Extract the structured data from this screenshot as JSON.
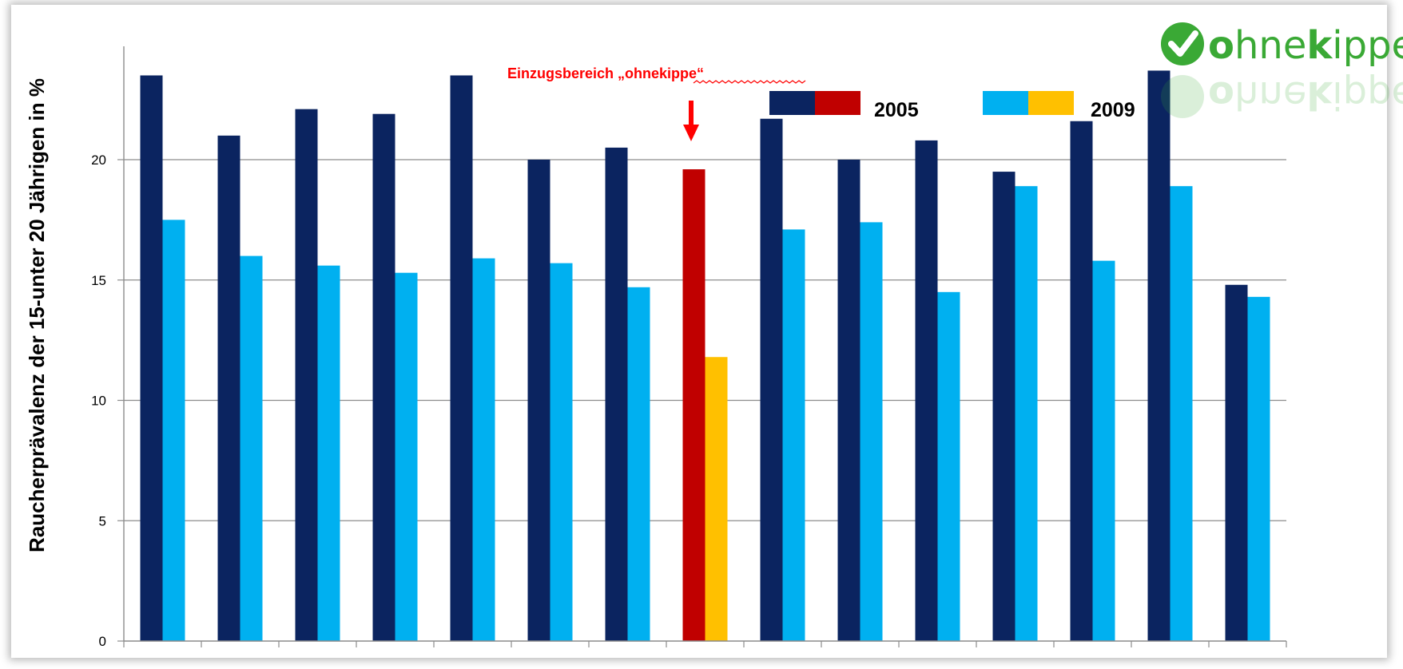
{
  "chart_data": {
    "type": "bar",
    "ylabel": "Raucherprävalenz der 15-unter 20 Jährigen in  %",
    "ylim": [
      0,
      25
    ],
    "yticks": [
      0,
      5,
      10,
      15,
      20
    ],
    "grid": true,
    "categories": [
      "",
      "",
      "",
      "",
      "",
      "",
      "",
      "",
      "",
      "",
      "",
      "",
      "",
      "",
      ""
    ],
    "series": [
      {
        "name": "2005",
        "color": "#0b2460",
        "values": [
          23.5,
          21.0,
          22.1,
          21.9,
          23.5,
          20.0,
          20.5,
          19.6,
          21.7,
          20.0,
          20.8,
          19.5,
          21.6,
          23.7,
          14.8
        ]
      },
      {
        "name": "2009",
        "color": "#00b0f0",
        "values": [
          17.5,
          16.0,
          15.6,
          15.3,
          15.9,
          15.7,
          14.7,
          11.8,
          17.1,
          17.4,
          14.5,
          18.9,
          15.8,
          18.9,
          14.3
        ]
      }
    ],
    "highlight": {
      "index": 7,
      "colors": {
        "2005": "#c00000",
        "2009": "#ffc000"
      },
      "annotation": "Einzugsbereich „ohnekippe“"
    },
    "legend": {
      "position": "top-right",
      "entries": [
        {
          "label": "2005",
          "colors": [
            "#0b2460",
            "#c00000"
          ]
        },
        {
          "label": "2009",
          "colors": [
            "#00b0f0",
            "#ffc000"
          ]
        }
      ]
    }
  },
  "logo": {
    "text": "ohnekippe",
    "prefix": "o",
    "mid": "hne",
    "k": "k",
    "suffix": "ippe",
    "green": "#3aa935",
    "icon": "checkmark-circle-icon"
  }
}
